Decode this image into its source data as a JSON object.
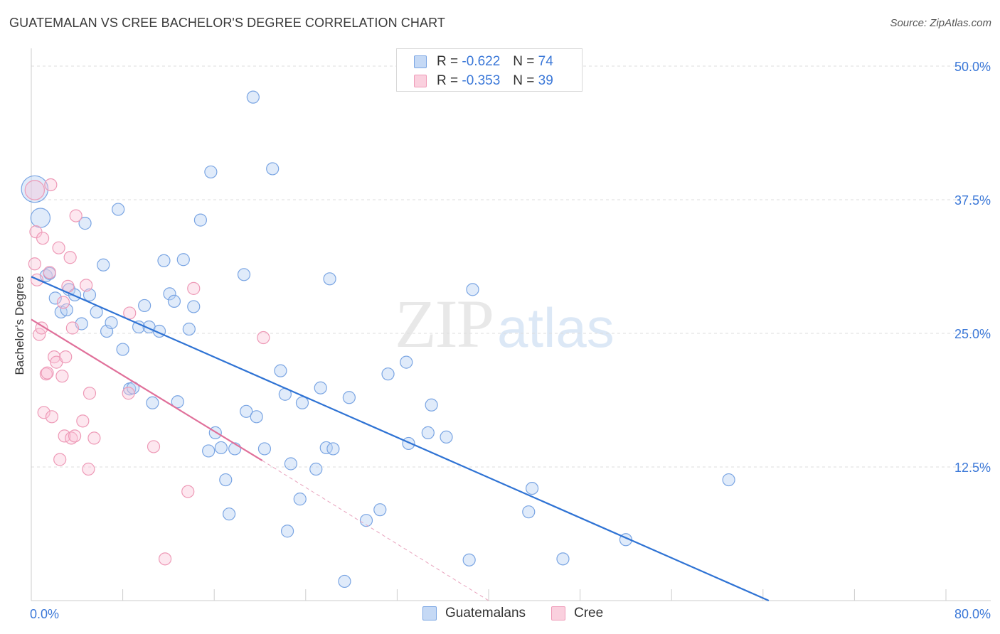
{
  "title": "GUATEMALAN VS CREE BACHELOR'S DEGREE CORRELATION CHART",
  "source": "Source: ZipAtlas.com",
  "watermark": {
    "zip": "ZIP",
    "atlas": "atlas"
  },
  "legend": {
    "r_label": "R =",
    "n_label": "N =",
    "series": [
      {
        "r": "-0.622",
        "n": "74"
      },
      {
        "r": "-0.353",
        "n": "39"
      }
    ]
  },
  "chart_data": {
    "type": "scatter",
    "title": "GUATEMALAN VS CREE BACHELOR'S DEGREE CORRELATION CHART",
    "xlabel": "",
    "ylabel": "Bachelor's Degree",
    "xlim": [
      0,
      80
    ],
    "ylim": [
      0,
      50
    ],
    "x_tick_labels": [
      "0.0%",
      "80.0%"
    ],
    "y_ticks": [
      12.5,
      25.0,
      37.5,
      50.0
    ],
    "y_tick_labels": [
      "12.5%",
      "25.0%",
      "37.5%",
      "50.0%"
    ],
    "grid": true,
    "legend_position": "top-center",
    "colors": {
      "Guatemalans": "#6f9ee0",
      "Cree": "#ef8fb0",
      "Guatemalans_line": "#2f73d4",
      "Cree_line": "#e0709a"
    },
    "series": [
      {
        "name": "Guatemalans",
        "r": -0.622,
        "n": 74,
        "trend": {
          "x0": 0.0,
          "y0": 30.3,
          "x1": 64.5,
          "y1": 0.0
        },
        "points": [
          [
            0.3,
            38.5,
            2.2
          ],
          [
            0.8,
            35.8,
            1.6
          ],
          [
            1.3,
            30.4,
            1
          ],
          [
            1.6,
            30.6,
            1
          ],
          [
            2.1,
            28.3,
            1
          ],
          [
            2.6,
            27.0,
            1
          ],
          [
            3.1,
            27.2,
            1
          ],
          [
            3.3,
            29.1,
            1
          ],
          [
            3.8,
            28.6,
            1
          ],
          [
            4.4,
            25.9,
            1
          ],
          [
            4.7,
            35.3,
            1
          ],
          [
            5.1,
            28.6,
            1
          ],
          [
            5.7,
            27.0,
            1
          ],
          [
            6.3,
            31.4,
            1
          ],
          [
            6.6,
            25.2,
            1
          ],
          [
            7.0,
            26.0,
            1
          ],
          [
            7.6,
            36.6,
            1
          ],
          [
            8.0,
            23.5,
            1
          ],
          [
            8.6,
            19.8,
            1
          ],
          [
            8.9,
            19.9,
            1
          ],
          [
            9.4,
            25.6,
            1
          ],
          [
            9.9,
            27.6,
            1
          ],
          [
            10.3,
            25.6,
            1
          ],
          [
            10.6,
            18.5,
            1
          ],
          [
            11.2,
            25.2,
            1
          ],
          [
            11.6,
            31.8,
            1
          ],
          [
            12.1,
            28.7,
            1
          ],
          [
            12.5,
            28.0,
            1
          ],
          [
            12.8,
            18.6,
            1
          ],
          [
            13.3,
            31.9,
            1
          ],
          [
            13.8,
            25.4,
            1
          ],
          [
            14.2,
            27.5,
            1
          ],
          [
            14.8,
            35.6,
            1
          ],
          [
            15.5,
            14.0,
            1
          ],
          [
            15.7,
            40.1,
            1
          ],
          [
            16.1,
            15.7,
            1
          ],
          [
            16.6,
            14.3,
            1
          ],
          [
            17.0,
            11.3,
            1
          ],
          [
            17.3,
            8.1,
            1
          ],
          [
            17.8,
            14.2,
            1
          ],
          [
            18.6,
            30.5,
            1
          ],
          [
            18.8,
            17.7,
            1
          ],
          [
            19.4,
            47.1,
            1
          ],
          [
            19.7,
            17.2,
            1
          ],
          [
            20.4,
            14.2,
            1
          ],
          [
            21.1,
            40.4,
            1
          ],
          [
            21.8,
            21.5,
            1
          ],
          [
            22.2,
            19.3,
            1
          ],
          [
            22.4,
            6.5,
            1
          ],
          [
            22.7,
            12.8,
            1
          ],
          [
            23.5,
            9.5,
            1
          ],
          [
            23.7,
            18.5,
            1
          ],
          [
            24.9,
            12.3,
            1
          ],
          [
            25.3,
            19.9,
            1
          ],
          [
            25.8,
            14.3,
            1
          ],
          [
            26.1,
            30.1,
            1
          ],
          [
            26.4,
            14.2,
            1
          ],
          [
            27.4,
            1.8,
            1
          ],
          [
            27.8,
            19.0,
            1
          ],
          [
            29.3,
            7.5,
            1
          ],
          [
            30.5,
            8.5,
            1
          ],
          [
            31.2,
            21.2,
            1
          ],
          [
            32.8,
            22.3,
            1
          ],
          [
            33.0,
            14.7,
            1
          ],
          [
            34.7,
            15.7,
            1
          ],
          [
            35.0,
            18.3,
            1
          ],
          [
            36.3,
            15.3,
            1
          ],
          [
            38.3,
            3.8,
            1
          ],
          [
            38.6,
            29.1,
            1
          ],
          [
            43.5,
            8.3,
            1
          ],
          [
            43.8,
            10.5,
            1
          ],
          [
            46.5,
            3.9,
            1
          ],
          [
            52.0,
            5.7,
            1
          ],
          [
            61.0,
            11.3,
            1
          ]
        ]
      },
      {
        "name": "Cree",
        "r": -0.353,
        "n": 39,
        "trend": {
          "x0": 0.0,
          "y0": 26.3,
          "x1": 20.2,
          "y1": 13.1
        },
        "dashed_extension": {
          "x0": 20.2,
          "y0": 13.1,
          "x1": 40.0,
          "y1": 0.0
        },
        "points": [
          [
            0.3,
            38.4,
            1.6
          ],
          [
            0.3,
            31.5,
            1
          ],
          [
            0.4,
            34.5,
            1
          ],
          [
            0.5,
            30.0,
            1
          ],
          [
            0.7,
            24.9,
            1
          ],
          [
            0.9,
            25.5,
            1
          ],
          [
            1.0,
            33.9,
            1
          ],
          [
            1.1,
            17.6,
            1
          ],
          [
            1.3,
            21.2,
            1
          ],
          [
            1.4,
            21.3,
            1
          ],
          [
            1.6,
            30.7,
            1
          ],
          [
            1.7,
            38.9,
            1
          ],
          [
            1.8,
            17.2,
            1
          ],
          [
            2.0,
            22.8,
            1
          ],
          [
            2.2,
            22.3,
            1
          ],
          [
            2.4,
            33.0,
            1
          ],
          [
            2.5,
            13.2,
            1
          ],
          [
            2.7,
            21.0,
            1
          ],
          [
            2.8,
            27.9,
            1
          ],
          [
            2.9,
            15.4,
            1
          ],
          [
            3.0,
            22.8,
            1
          ],
          [
            3.2,
            29.4,
            1
          ],
          [
            3.4,
            32.1,
            1
          ],
          [
            3.5,
            15.2,
            1
          ],
          [
            3.6,
            25.5,
            1
          ],
          [
            3.8,
            15.4,
            1
          ],
          [
            3.9,
            36.0,
            1
          ],
          [
            4.5,
            16.8,
            1
          ],
          [
            4.8,
            29.5,
            1
          ],
          [
            5.0,
            12.3,
            1
          ],
          [
            5.1,
            19.4,
            1
          ],
          [
            5.5,
            15.2,
            1
          ],
          [
            8.5,
            19.4,
            1
          ],
          [
            8.6,
            26.9,
            1
          ],
          [
            10.7,
            14.4,
            1
          ],
          [
            11.7,
            3.9,
            1
          ],
          [
            13.7,
            10.2,
            1
          ],
          [
            14.2,
            29.2,
            1
          ],
          [
            20.3,
            24.6,
            1
          ]
        ]
      }
    ]
  },
  "bottom_legend": {
    "items": [
      "Guatemalans",
      "Cree"
    ]
  }
}
